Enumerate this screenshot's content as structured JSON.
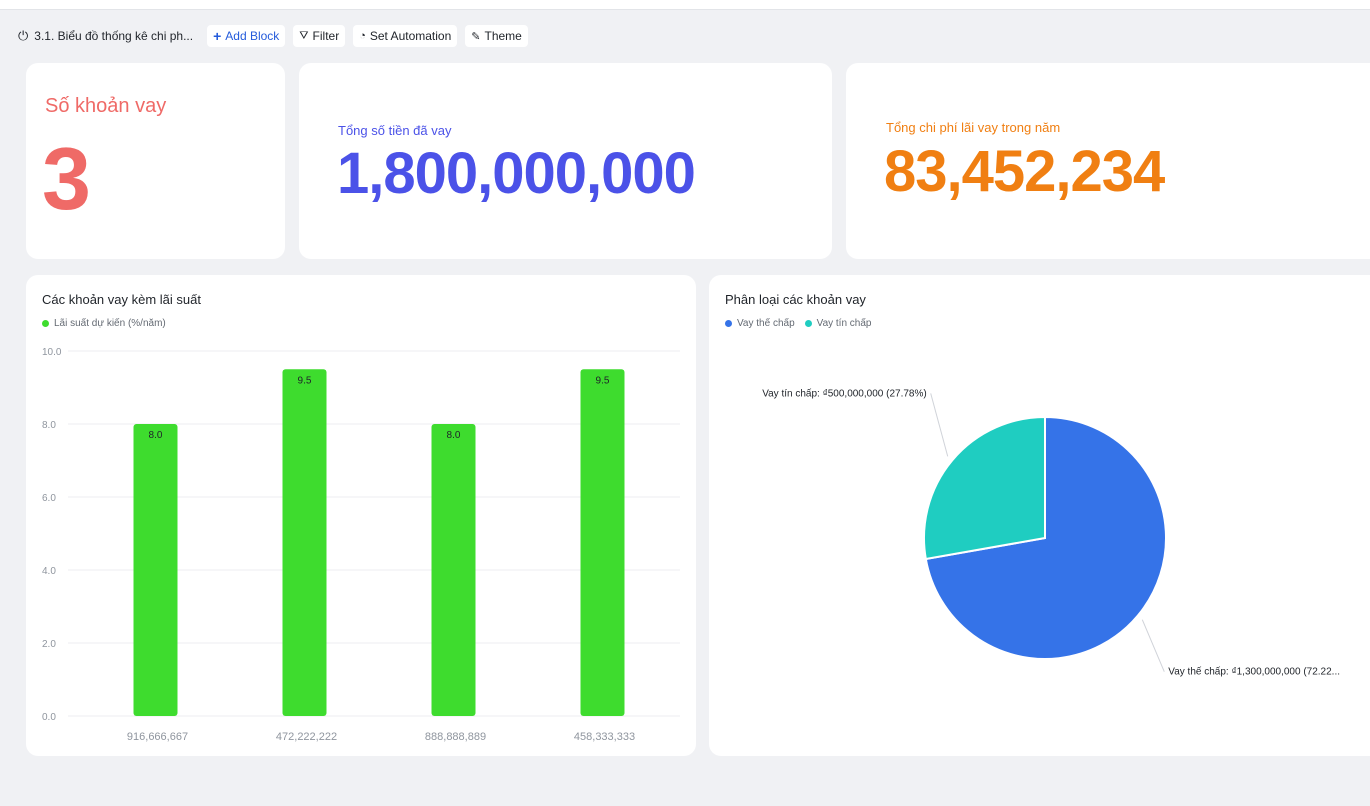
{
  "toolbar": {
    "title": "3.1. Biểu đồ thống kê chi ph...",
    "add_block": "Add Block",
    "filter": "Filter",
    "set_automation": "Set Automation",
    "theme": "Theme"
  },
  "stats": {
    "count": {
      "label": "Số khoản vay",
      "value": "3",
      "color": "#ef6a67"
    },
    "total": {
      "label": "Tổng số tiền đã vay",
      "value": "1,800,000,000",
      "color": "#4b52e8"
    },
    "interest": {
      "label": "Tổng chi phí lãi vay trong năm",
      "value": "83,452,234",
      "color": "#f07f12"
    }
  },
  "bar_card": {
    "title": "Các khoản vay kèm lãi suất"
  },
  "pie_card": {
    "title": "Phân loại các khoản vay"
  },
  "chart_data": [
    {
      "type": "bar",
      "title": "Các khoản vay kèm lãi suất",
      "categories": [
        "916,666,667",
        "472,222,222",
        "888,888,889",
        "458,333,333"
      ],
      "series": [
        {
          "name": "Lãi suất dự kiến (%/năm)",
          "values": [
            8.0,
            9.5,
            8.0,
            9.5
          ],
          "color": "#3edc2e"
        }
      ],
      "data_labels": [
        "8.0",
        "9.5",
        "8.0",
        "9.5"
      ],
      "yticks": [
        "0.0",
        "2.0",
        "4.0",
        "6.0",
        "8.0",
        "10.0"
      ],
      "ylim": [
        0,
        10
      ],
      "grid": true,
      "legend": "top-left"
    },
    {
      "type": "pie",
      "title": "Phân loại các khoản vay",
      "slices": [
        {
          "name": "Vay thế chấp",
          "value": 1300000000,
          "percent": 72.22,
          "color": "#3573e8",
          "label": "Vay thế chấp: ₫1,300,000,000 (72.22..."
        },
        {
          "name": "Vay tín chấp",
          "value": 500000000,
          "percent": 27.78,
          "color": "#1fcdc1",
          "label": "Vay tín chấp: ₫500,000,000 (27.78%)"
        }
      ],
      "legend": "top-left"
    }
  ]
}
